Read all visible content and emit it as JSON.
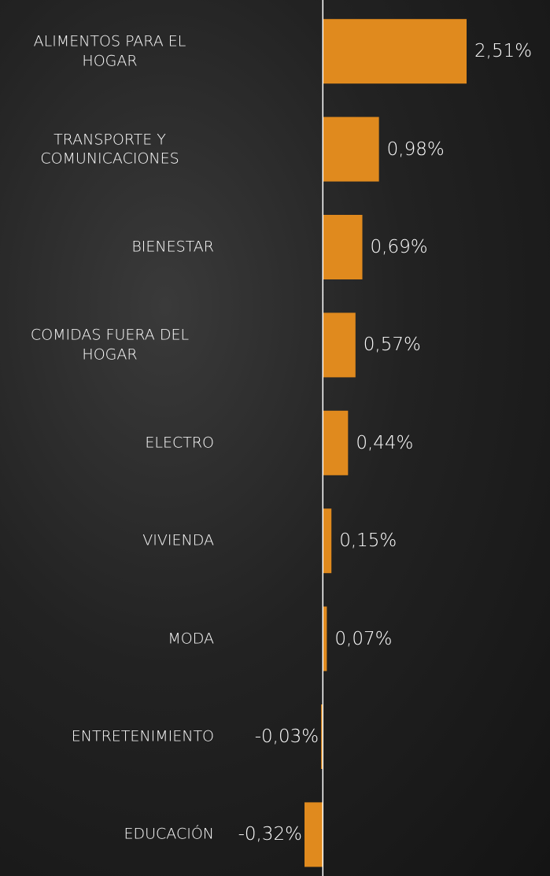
{
  "chart_data": {
    "type": "hbar",
    "categories": [
      "ALIMENTOS PARA EL HOGAR",
      "TRANSPORTE Y COMUNICACIONES",
      "BIENESTAR",
      "COMIDAS FUERA DEL HOGAR",
      "ELECTRO",
      "VIVIENDA",
      "MODA",
      "ENTRETENIMIENTO",
      "EDUCACIÓN"
    ],
    "values": [
      2.51,
      0.98,
      0.69,
      0.57,
      0.44,
      0.15,
      0.07,
      -0.03,
      -0.32
    ],
    "value_labels": [
      "2,51%",
      "0,98%",
      "0,69%",
      "0,57%",
      "0,44%",
      "0,15%",
      "0,07%",
      "-0,03%",
      "-0,32%"
    ],
    "color": "#e08a1e"
  }
}
